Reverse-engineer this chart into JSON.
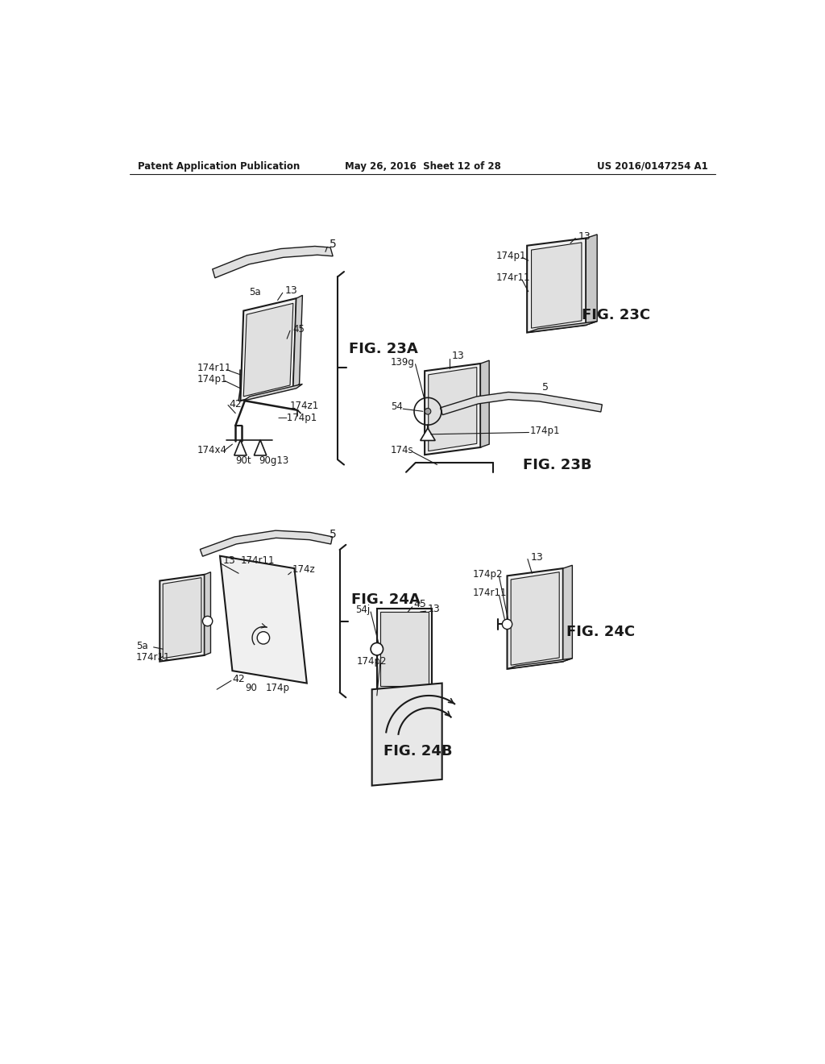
{
  "bg_color": "#ffffff",
  "header_left": "Patent Application Publication",
  "header_mid": "May 26, 2016  Sheet 12 of 28",
  "header_right": "US 2016/0147254 A1",
  "fig23a_label": "FIG. 23A",
  "fig23b_label": "FIG. 23B",
  "fig23c_label": "FIG. 23C",
  "fig24a_label": "FIG. 24A",
  "fig24b_label": "FIG. 24B",
  "fig24c_label": "FIG. 24C",
  "line_color": "#1a1a1a",
  "text_color": "#1a1a1a",
  "fig_label_size": 13,
  "anno_size": 8.5,
  "num_size": 9
}
